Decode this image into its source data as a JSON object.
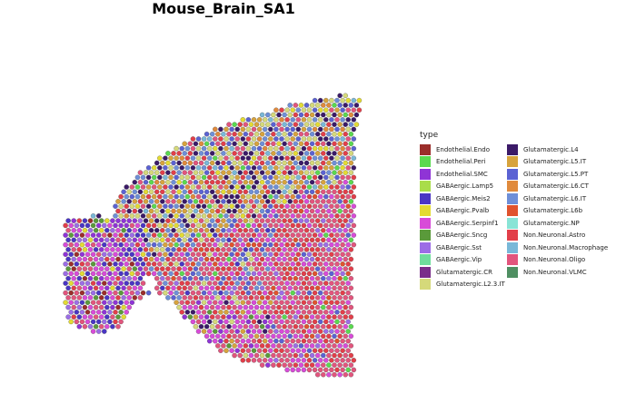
{
  "chart_data": {
    "type": "scatter",
    "title": "Mouse_Brain_SA1",
    "legend_title": "type",
    "legend_position": "right",
    "categories": [
      {
        "name": "Endothelial.Endo",
        "color": "#9b2d2a"
      },
      {
        "name": "Endothelial.Peri",
        "color": "#5ad94f"
      },
      {
        "name": "Endothelial.SMC",
        "color": "#8f34d6"
      },
      {
        "name": "GABAergic.Lamp5",
        "color": "#a9dd4a"
      },
      {
        "name": "GABAergic.Meis2",
        "color": "#4a36c4"
      },
      {
        "name": "GABAergic.Pvalb",
        "color": "#e3db33"
      },
      {
        "name": "GABAergic.Serpinf1",
        "color": "#d84bd8"
      },
      {
        "name": "GABAergic.Sncg",
        "color": "#5a9a3a"
      },
      {
        "name": "GABAergic.Sst",
        "color": "#9c6de6"
      },
      {
        "name": "GABAergic.Vip",
        "color": "#6fdd9c"
      },
      {
        "name": "Glutamatergic.CR",
        "color": "#7a2e8a"
      },
      {
        "name": "Glutamatergic.L2.3.IT",
        "color": "#d5d97a"
      },
      {
        "name": "Glutamatergic.L4",
        "color": "#3b1a68"
      },
      {
        "name": "Glutamatergic.L5.IT",
        "color": "#d7a33d"
      },
      {
        "name": "Glutamatergic.L5.PT",
        "color": "#5b62d3"
      },
      {
        "name": "Glutamatergic.L6.CT",
        "color": "#e08a3c"
      },
      {
        "name": "Glutamatergic.L6.IT",
        "color": "#6e8fd8"
      },
      {
        "name": "Glutamatergic.L6b",
        "color": "#e0532e"
      },
      {
        "name": "Glutamatergic.NP",
        "color": "#89e4d6"
      },
      {
        "name": "Non.Neuronal.Astro",
        "color": "#e23f4a"
      },
      {
        "name": "Non.Neuronal.Macrophage",
        "color": "#79b8d8"
      },
      {
        "name": "Non.Neuronal.Oligo",
        "color": "#e2557d"
      },
      {
        "name": "Non.Neuronal.VLMC",
        "color": "#4f8f62"
      }
    ]
  }
}
